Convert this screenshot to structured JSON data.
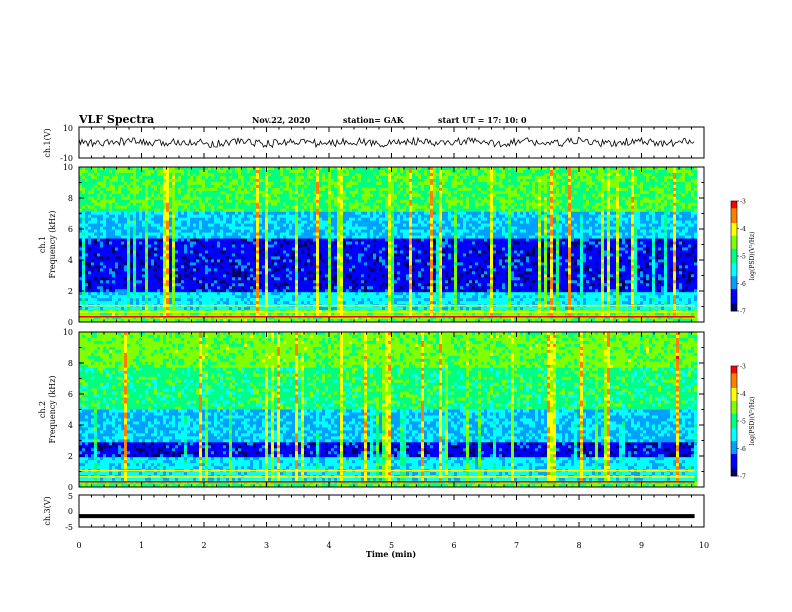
{
  "header": {
    "title": "VLF Spectra",
    "date": "Nov.22, 2020",
    "station": "station= GAK",
    "start": "start  UT =   17: 10: 0"
  },
  "colors": {
    "scale": [
      "#000066",
      "#0000ff",
      "#00a0ff",
      "#00ffff",
      "#00ff80",
      "#80ff00",
      "#ffff00",
      "#ff8000",
      "#ff0000",
      "#ffffff"
    ],
    "trace": "#000000"
  },
  "chart_data": [
    {
      "type": "line",
      "name": "ch.1 waveform",
      "ylabel": "ch.1(V)",
      "ylim": [
        -10,
        10
      ],
      "yticks": [
        "10",
        "-10"
      ],
      "x_range": [
        0,
        10
      ],
      "x_end": 9.85
    },
    {
      "type": "heatmap",
      "name": "ch.1 spectrogram",
      "ylabel": "ch.1\nFrequency (kHz)",
      "ylim": [
        0,
        10
      ],
      "yticks": [
        "0",
        "2",
        "4",
        "6",
        "8",
        "10"
      ],
      "colorbar": {
        "label": "log(PSD)(V²/Hz)",
        "min": -7,
        "max": -3,
        "ticks": [
          "-3",
          "-4",
          "-5",
          "-6",
          "-7"
        ]
      }
    },
    {
      "type": "heatmap",
      "name": "ch.2 spectrogram",
      "ylabel": "ch.2\nFrequency (kHz)",
      "ylim": [
        0,
        10
      ],
      "yticks": [
        "0",
        "2",
        "4",
        "6",
        "8",
        "10"
      ],
      "colorbar": {
        "label": "log(PSD)(V²/Hz)",
        "min": -7,
        "max": -3,
        "ticks": [
          "-3",
          "-4",
          "-5",
          "-6",
          "-7"
        ]
      }
    },
    {
      "type": "line",
      "name": "ch.3 waveform",
      "ylabel": "ch.3(V)",
      "ylim": [
        -5,
        5
      ],
      "yticks": [
        "5",
        "0",
        "-5"
      ],
      "value": -1.6
    }
  ],
  "xaxis": {
    "label": "Time  (min)",
    "ticks": [
      "0",
      "1",
      "2",
      "3",
      "4",
      "5",
      "6",
      "7",
      "8",
      "9",
      "10"
    ]
  }
}
